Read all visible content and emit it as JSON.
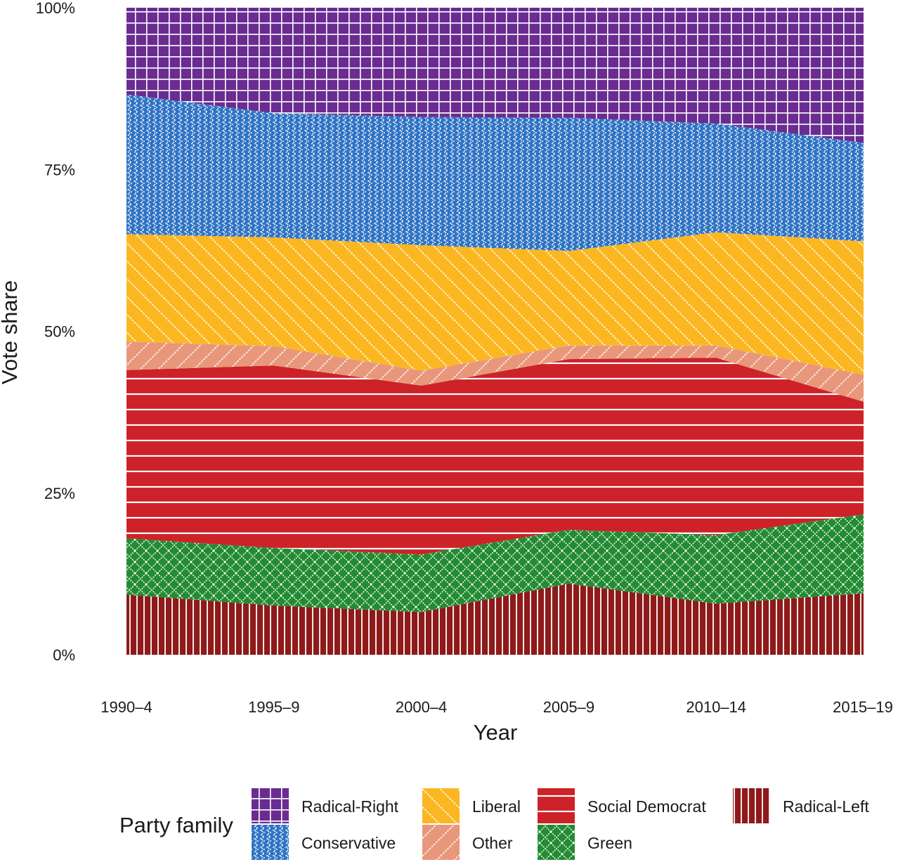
{
  "chart_data": {
    "type": "area",
    "stacked": true,
    "percent": true,
    "xlabel": "Year",
    "ylabel": "Vote share",
    "x": [
      "1990–4",
      "1995–9",
      "2000–4",
      "2005–9",
      "2010–14",
      "2015–19"
    ],
    "y_ticks": [
      "0%",
      "25%",
      "50%",
      "75%",
      "100%"
    ],
    "ylim": [
      0,
      100
    ],
    "legend_title": "Party family",
    "legend_position": "bottom",
    "series": [
      {
        "name": "Radical-Left",
        "color": "#8e1a1a",
        "pattern": "vertical-stripes",
        "values": [
          9.3,
          7.6,
          6.6,
          11.0,
          7.9,
          9.5
        ]
      },
      {
        "name": "Green",
        "color": "#238b32",
        "pattern": "crosshatch",
        "values": [
          8.7,
          8.9,
          8.9,
          8.3,
          10.6,
          12.2
        ]
      },
      {
        "name": "Social Democrat",
        "color": "#cc2228",
        "pattern": "horizontal-stripes",
        "values": [
          26.0,
          28.2,
          26.1,
          26.4,
          27.4,
          17.4
        ]
      },
      {
        "name": "Other",
        "color": "#e8977b",
        "pattern": "diagonal-stripes",
        "values": [
          4.4,
          3.0,
          2.3,
          2.1,
          1.9,
          4.2
        ]
      },
      {
        "name": "Liberal",
        "color": "#fbb721",
        "pattern": "diagonal-stripes-fine",
        "values": [
          16.6,
          16.8,
          19.4,
          14.6,
          17.5,
          20.6
        ]
      },
      {
        "name": "Conservative",
        "color": "#2e73c4",
        "pattern": "zigzag",
        "values": [
          21.6,
          19.2,
          19.8,
          20.6,
          16.8,
          15.2
        ]
      },
      {
        "name": "Radical-Right",
        "color": "#6a2c91",
        "pattern": "grid",
        "values": [
          13.4,
          16.3,
          16.9,
          17.0,
          17.9,
          20.9
        ]
      }
    ],
    "legend_order": [
      "Radical-Right",
      "Conservative",
      "Liberal",
      "Other",
      "Social Democrat",
      "Green",
      "Radical-Left"
    ]
  }
}
